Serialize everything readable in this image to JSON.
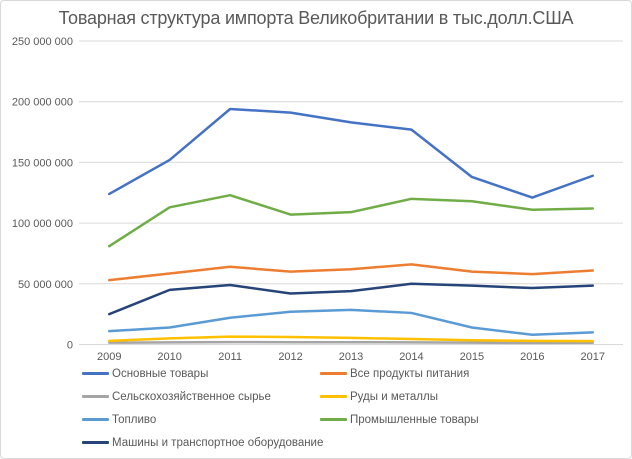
{
  "window": {
    "background": "#FFFFFF",
    "border_color": "#D9D9D9"
  },
  "chart_data": {
    "type": "line",
    "title": "Товарная структура импорта Великобритании в тыс.долл.США",
    "xlabel": "",
    "ylabel": "",
    "categories": [
      "2009",
      "2010",
      "2011",
      "2012",
      "2013",
      "2014",
      "2015",
      "2016",
      "2017"
    ],
    "series": [
      {
        "name": "Основные товары",
        "color": "#4472C4",
        "values": [
          124000000,
          152000000,
          194000000,
          191000000,
          183000000,
          177000000,
          138000000,
          121000000,
          139000000
        ]
      },
      {
        "name": "Все продукты питания",
        "color": "#ED7D31",
        "values": [
          53000000,
          58500000,
          64000000,
          60000000,
          62000000,
          66000000,
          60000000,
          58000000,
          61000000
        ]
      },
      {
        "name": "Сельскохозяйственное сырье",
        "color": "#A5A5A5",
        "values": [
          1500000,
          1800000,
          2000000,
          1900000,
          1900000,
          1800000,
          1500000,
          1300000,
          1400000
        ]
      },
      {
        "name": "Руды и металлы",
        "color": "#FFC000",
        "values": [
          3000000,
          5000000,
          6500000,
          6200000,
          5500000,
          4500000,
          3500000,
          3000000,
          2800000
        ]
      },
      {
        "name": "Топливо",
        "color": "#5B9BD5",
        "values": [
          11000000,
          14000000,
          22000000,
          27000000,
          28500000,
          26000000,
          14000000,
          8000000,
          10000000
        ]
      },
      {
        "name": "Промышленные товары",
        "color": "#70AD47",
        "values": [
          81000000,
          113000000,
          123000000,
          107000000,
          109000000,
          120000000,
          118000000,
          111000000,
          112000000
        ]
      },
      {
        "name": "Машины и транспортное оборудование",
        "color": "#264478",
        "values": [
          25000000,
          45000000,
          49000000,
          42000000,
          44000000,
          50000000,
          48500000,
          46500000,
          48500000
        ]
      }
    ],
    "y_axis": {
      "min": 0,
      "max": 250000000,
      "ticks": [
        {
          "value": 0,
          "label": "0"
        },
        {
          "value": 50000000,
          "label": "50 000 000"
        },
        {
          "value": 100000000,
          "label": "100 000 000"
        },
        {
          "value": 150000000,
          "label": "150 000 000"
        },
        {
          "value": 200000000,
          "label": "200 000 000"
        },
        {
          "value": 250000000,
          "label": "250 000 000"
        }
      ]
    },
    "grid": true,
    "legend_position": "bottom",
    "styles": {
      "grid_color": "#D9D9D9",
      "label_color": "#595959",
      "title_color": "#595959",
      "line_width": 2.5
    }
  }
}
